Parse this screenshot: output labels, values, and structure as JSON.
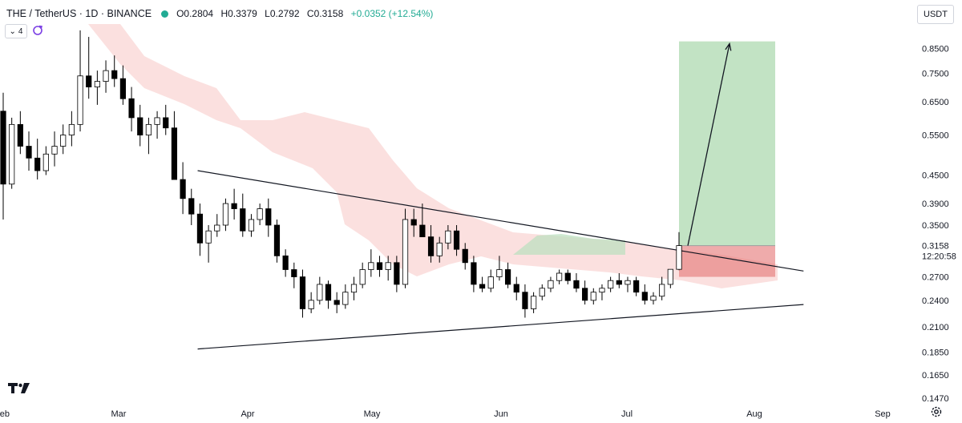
{
  "header": {
    "symbol": "THE / TetherUS · 1D · BINANCE",
    "open": "O0.2804",
    "high": "H0.3379",
    "low": "L0.2792",
    "close": "C0.3158",
    "change": "+0.0352 (+12.54%)",
    "indicator_count": "4",
    "currency": "USDT",
    "status_color": "#22ab94"
  },
  "icons": {
    "logo": "tradingview-logo-icon",
    "settings": "gear-icon",
    "refresh": "refresh-icon",
    "collapse": "chevron-down-icon"
  },
  "chart_data": {
    "type": "candlestick",
    "scale": "log",
    "ylim": [
      0.135,
      0.96
    ],
    "y_ticks": [
      "0.8500",
      "0.7500",
      "0.6500",
      "0.5500",
      "0.4500",
      "0.3900",
      "0.3500",
      "0.2700",
      "0.2400",
      "0.2100",
      "0.1850",
      "0.1650",
      "0.1470"
    ],
    "x_ticks": [
      "Feb",
      "Mar",
      "Apr",
      "May",
      "Jun",
      "Jul",
      "Aug",
      "Sep"
    ],
    "last_price": "0.3158",
    "countdown": "12:20:58",
    "colors": {
      "up": "#ffffff",
      "down": "#000000",
      "cloud": "#f7c6c4",
      "cloud_green": "#b9e0bd",
      "target": "#8fcc93",
      "stop": "#e57373"
    },
    "candles_ohlc": [
      [
        0.62,
        0.68,
        0.36,
        0.43
      ],
      [
        0.43,
        0.6,
        0.42,
        0.58
      ],
      [
        0.58,
        0.62,
        0.5,
        0.52
      ],
      [
        0.52,
        0.56,
        0.46,
        0.49
      ],
      [
        0.49,
        0.54,
        0.44,
        0.46
      ],
      [
        0.46,
        0.52,
        0.45,
        0.5
      ],
      [
        0.5,
        0.56,
        0.47,
        0.52
      ],
      [
        0.52,
        0.58,
        0.5,
        0.55
      ],
      [
        0.55,
        0.62,
        0.52,
        0.58
      ],
      [
        0.58,
        0.93,
        0.56,
        0.74
      ],
      [
        0.74,
        0.9,
        0.66,
        0.7
      ],
      [
        0.7,
        0.76,
        0.64,
        0.72
      ],
      [
        0.72,
        0.8,
        0.68,
        0.76
      ],
      [
        0.76,
        0.82,
        0.7,
        0.73
      ],
      [
        0.73,
        0.78,
        0.64,
        0.66
      ],
      [
        0.66,
        0.7,
        0.56,
        0.6
      ],
      [
        0.6,
        0.64,
        0.52,
        0.55
      ],
      [
        0.55,
        0.6,
        0.5,
        0.58
      ],
      [
        0.58,
        0.62,
        0.54,
        0.6
      ],
      [
        0.6,
        0.64,
        0.55,
        0.57
      ],
      [
        0.57,
        0.62,
        0.48,
        0.44
      ],
      [
        0.44,
        0.48,
        0.37,
        0.4
      ],
      [
        0.4,
        0.42,
        0.35,
        0.37
      ],
      [
        0.37,
        0.39,
        0.3,
        0.32
      ],
      [
        0.32,
        0.35,
        0.29,
        0.34
      ],
      [
        0.34,
        0.37,
        0.33,
        0.35
      ],
      [
        0.35,
        0.4,
        0.34,
        0.39
      ],
      [
        0.39,
        0.42,
        0.36,
        0.38
      ],
      [
        0.38,
        0.41,
        0.33,
        0.34
      ],
      [
        0.34,
        0.37,
        0.33,
        0.36
      ],
      [
        0.36,
        0.39,
        0.35,
        0.38
      ],
      [
        0.38,
        0.4,
        0.33,
        0.35
      ],
      [
        0.35,
        0.36,
        0.29,
        0.3
      ],
      [
        0.3,
        0.31,
        0.27,
        0.28
      ],
      [
        0.28,
        0.29,
        0.255,
        0.27
      ],
      [
        0.27,
        0.28,
        0.22,
        0.23
      ],
      [
        0.23,
        0.25,
        0.225,
        0.24
      ],
      [
        0.24,
        0.27,
        0.235,
        0.26
      ],
      [
        0.26,
        0.265,
        0.23,
        0.24
      ],
      [
        0.24,
        0.25,
        0.225,
        0.235
      ],
      [
        0.235,
        0.26,
        0.23,
        0.25
      ],
      [
        0.25,
        0.27,
        0.24,
        0.26
      ],
      [
        0.26,
        0.29,
        0.255,
        0.28
      ],
      [
        0.28,
        0.31,
        0.27,
        0.29
      ],
      [
        0.29,
        0.3,
        0.27,
        0.28
      ],
      [
        0.28,
        0.3,
        0.265,
        0.29
      ],
      [
        0.29,
        0.3,
        0.25,
        0.26
      ],
      [
        0.26,
        0.38,
        0.255,
        0.36
      ],
      [
        0.36,
        0.38,
        0.33,
        0.35
      ],
      [
        0.35,
        0.39,
        0.34,
        0.33
      ],
      [
        0.33,
        0.35,
        0.29,
        0.3
      ],
      [
        0.3,
        0.33,
        0.29,
        0.32
      ],
      [
        0.32,
        0.35,
        0.31,
        0.34
      ],
      [
        0.34,
        0.35,
        0.3,
        0.31
      ],
      [
        0.31,
        0.32,
        0.28,
        0.29
      ],
      [
        0.29,
        0.3,
        0.25,
        0.26
      ],
      [
        0.26,
        0.27,
        0.25,
        0.255
      ],
      [
        0.255,
        0.28,
        0.25,
        0.27
      ],
      [
        0.27,
        0.3,
        0.265,
        0.28
      ],
      [
        0.28,
        0.29,
        0.255,
        0.26
      ],
      [
        0.26,
        0.27,
        0.24,
        0.25
      ],
      [
        0.25,
        0.26,
        0.22,
        0.23
      ],
      [
        0.23,
        0.25,
        0.225,
        0.245
      ],
      [
        0.245,
        0.26,
        0.24,
        0.255
      ],
      [
        0.255,
        0.27,
        0.25,
        0.265
      ],
      [
        0.265,
        0.28,
        0.26,
        0.275
      ],
      [
        0.275,
        0.28,
        0.26,
        0.265
      ],
      [
        0.265,
        0.275,
        0.25,
        0.255
      ],
      [
        0.255,
        0.265,
        0.235,
        0.24
      ],
      [
        0.24,
        0.255,
        0.235,
        0.25
      ],
      [
        0.25,
        0.26,
        0.24,
        0.255
      ],
      [
        0.255,
        0.27,
        0.25,
        0.265
      ],
      [
        0.265,
        0.275,
        0.255,
        0.26
      ],
      [
        0.26,
        0.27,
        0.25,
        0.265
      ],
      [
        0.265,
        0.27,
        0.245,
        0.25
      ],
      [
        0.25,
        0.26,
        0.235,
        0.24
      ],
      [
        0.24,
        0.25,
        0.235,
        0.245
      ],
      [
        0.245,
        0.27,
        0.24,
        0.26
      ],
      [
        0.26,
        0.28,
        0.255,
        0.2804
      ],
      [
        0.2804,
        0.3379,
        0.2792,
        0.3158
      ]
    ],
    "trendlines": [
      {
        "name": "descending-resistance",
        "from": [
          "Mar 18",
          0.46
        ],
        "to": [
          "Aug 6",
          0.278
        ]
      },
      {
        "name": "ascending-support",
        "from": [
          "Mar 18",
          0.188
        ],
        "to": [
          "Aug 6",
          0.235
        ]
      }
    ],
    "position": {
      "entry": 0.3158,
      "target": 0.88,
      "stop": 0.27
    }
  }
}
